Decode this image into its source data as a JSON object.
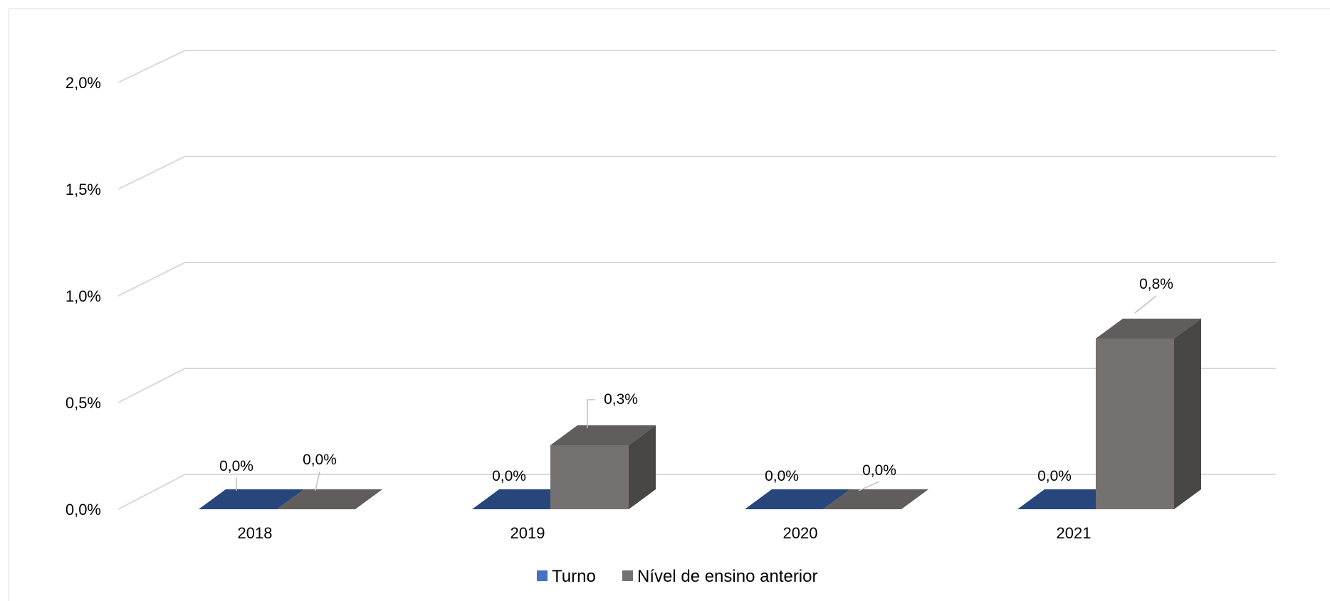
{
  "chart_data": {
    "type": "bar",
    "categories": [
      "2018",
      "2019",
      "2020",
      "2021"
    ],
    "series": [
      {
        "name": "Turno",
        "values": [
          0.0,
          0.0,
          0.0,
          0.0
        ],
        "labels": [
          "0,0%",
          "0,0%",
          "0,0%",
          "0,0%"
        ],
        "color": "#2f5597"
      },
      {
        "name": "Nível de ensino anterior",
        "values": [
          0.0,
          0.3,
          0.0,
          0.8
        ],
        "labels": [
          "0,0%",
          "0,3%",
          "0,0%",
          "0,8%"
        ],
        "color": "#767171"
      }
    ],
    "yticks": [
      "0,0%",
      "0,5%",
      "1,0%",
      "1,5%",
      "2,0%"
    ],
    "ylim": [
      0,
      2.0
    ],
    "grid": true,
    "legend_position": "bottom",
    "style": "3d-clustered-column"
  }
}
